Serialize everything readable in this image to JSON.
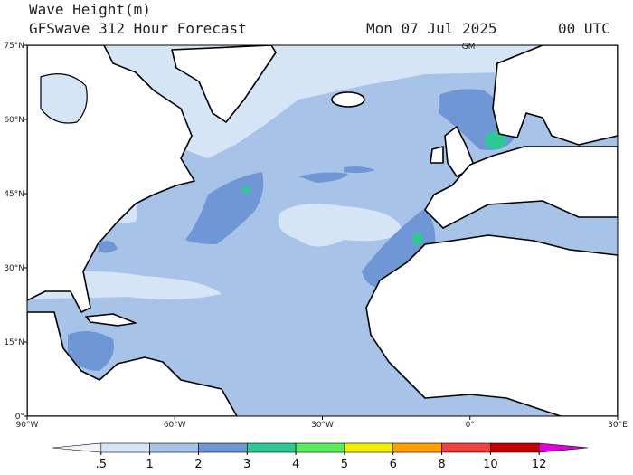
{
  "header": {
    "title": "Wave Height(m)",
    "subtitle": "GFSwave 312 Hour Forecast",
    "date": "Mon 07 Jul 2025",
    "time": "00 UTC"
  },
  "map": {
    "lon_range": [
      -90,
      30
    ],
    "lat_range": [
      0,
      75
    ],
    "lon_ticks": [
      {
        "value": -90,
        "label": "90°W"
      },
      {
        "value": -60,
        "label": "60°W"
      },
      {
        "value": -30,
        "label": "30°W"
      },
      {
        "value": 0,
        "label": "0°"
      },
      {
        "value": 30,
        "label": "30°E"
      }
    ],
    "lat_ticks": [
      {
        "value": 0,
        "label": "0°"
      },
      {
        "value": 15,
        "label": "15°N"
      },
      {
        "value": 30,
        "label": "30°N"
      },
      {
        "value": 45,
        "label": "45°N"
      },
      {
        "value": 60,
        "label": "60°N"
      },
      {
        "value": 75,
        "label": "75°N"
      }
    ],
    "meridian_label": "GM"
  },
  "colorbar": {
    "levels": [
      {
        "value": 0.5,
        "label": ".5"
      },
      1,
      2,
      3,
      4,
      5,
      6,
      8,
      10,
      12
    ],
    "colors": [
      "#f2f6fc",
      "#d5e5f5",
      "#a7c3e8",
      "#6f97d6",
      "#2fc894",
      "#5eea5e",
      "#f2f000",
      "#ffa000",
      "#f0433f",
      "#c40000",
      "#e000e0"
    ]
  }
}
